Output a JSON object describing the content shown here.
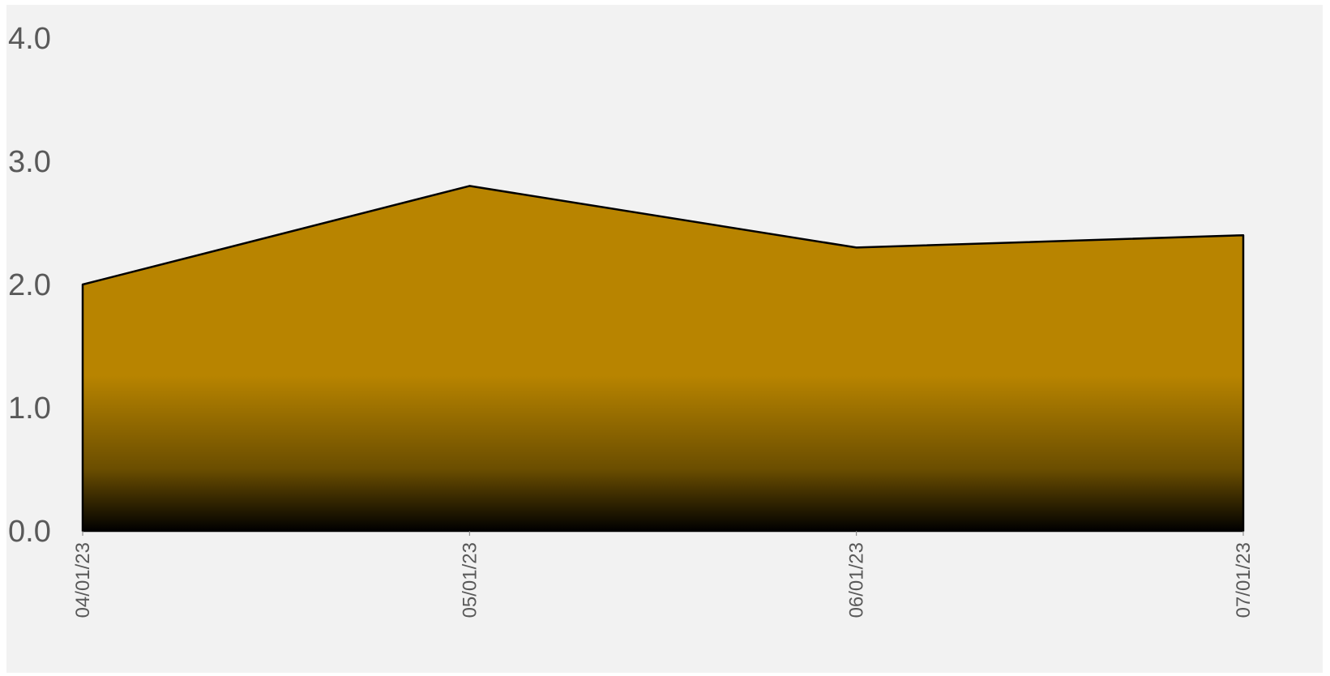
{
  "chart_data": {
    "type": "area",
    "title": "",
    "xlabel": "",
    "ylabel": "",
    "x": [
      "04/01/23",
      "05/01/23",
      "06/01/23",
      "07/01/23"
    ],
    "series": [
      {
        "values": [
          2.0,
          2.8,
          2.3,
          2.4
        ]
      }
    ],
    "ylim": [
      0,
      4
    ],
    "y_ticks": [
      "0.0",
      "1.0",
      "2.0",
      "3.0",
      "4.0"
    ],
    "grid": false,
    "legend": "none",
    "fill_color_top": "#b88400",
    "fill_color_bottom": "#000000",
    "outline_color": "#000000",
    "background_color": "#f2f2f2"
  }
}
